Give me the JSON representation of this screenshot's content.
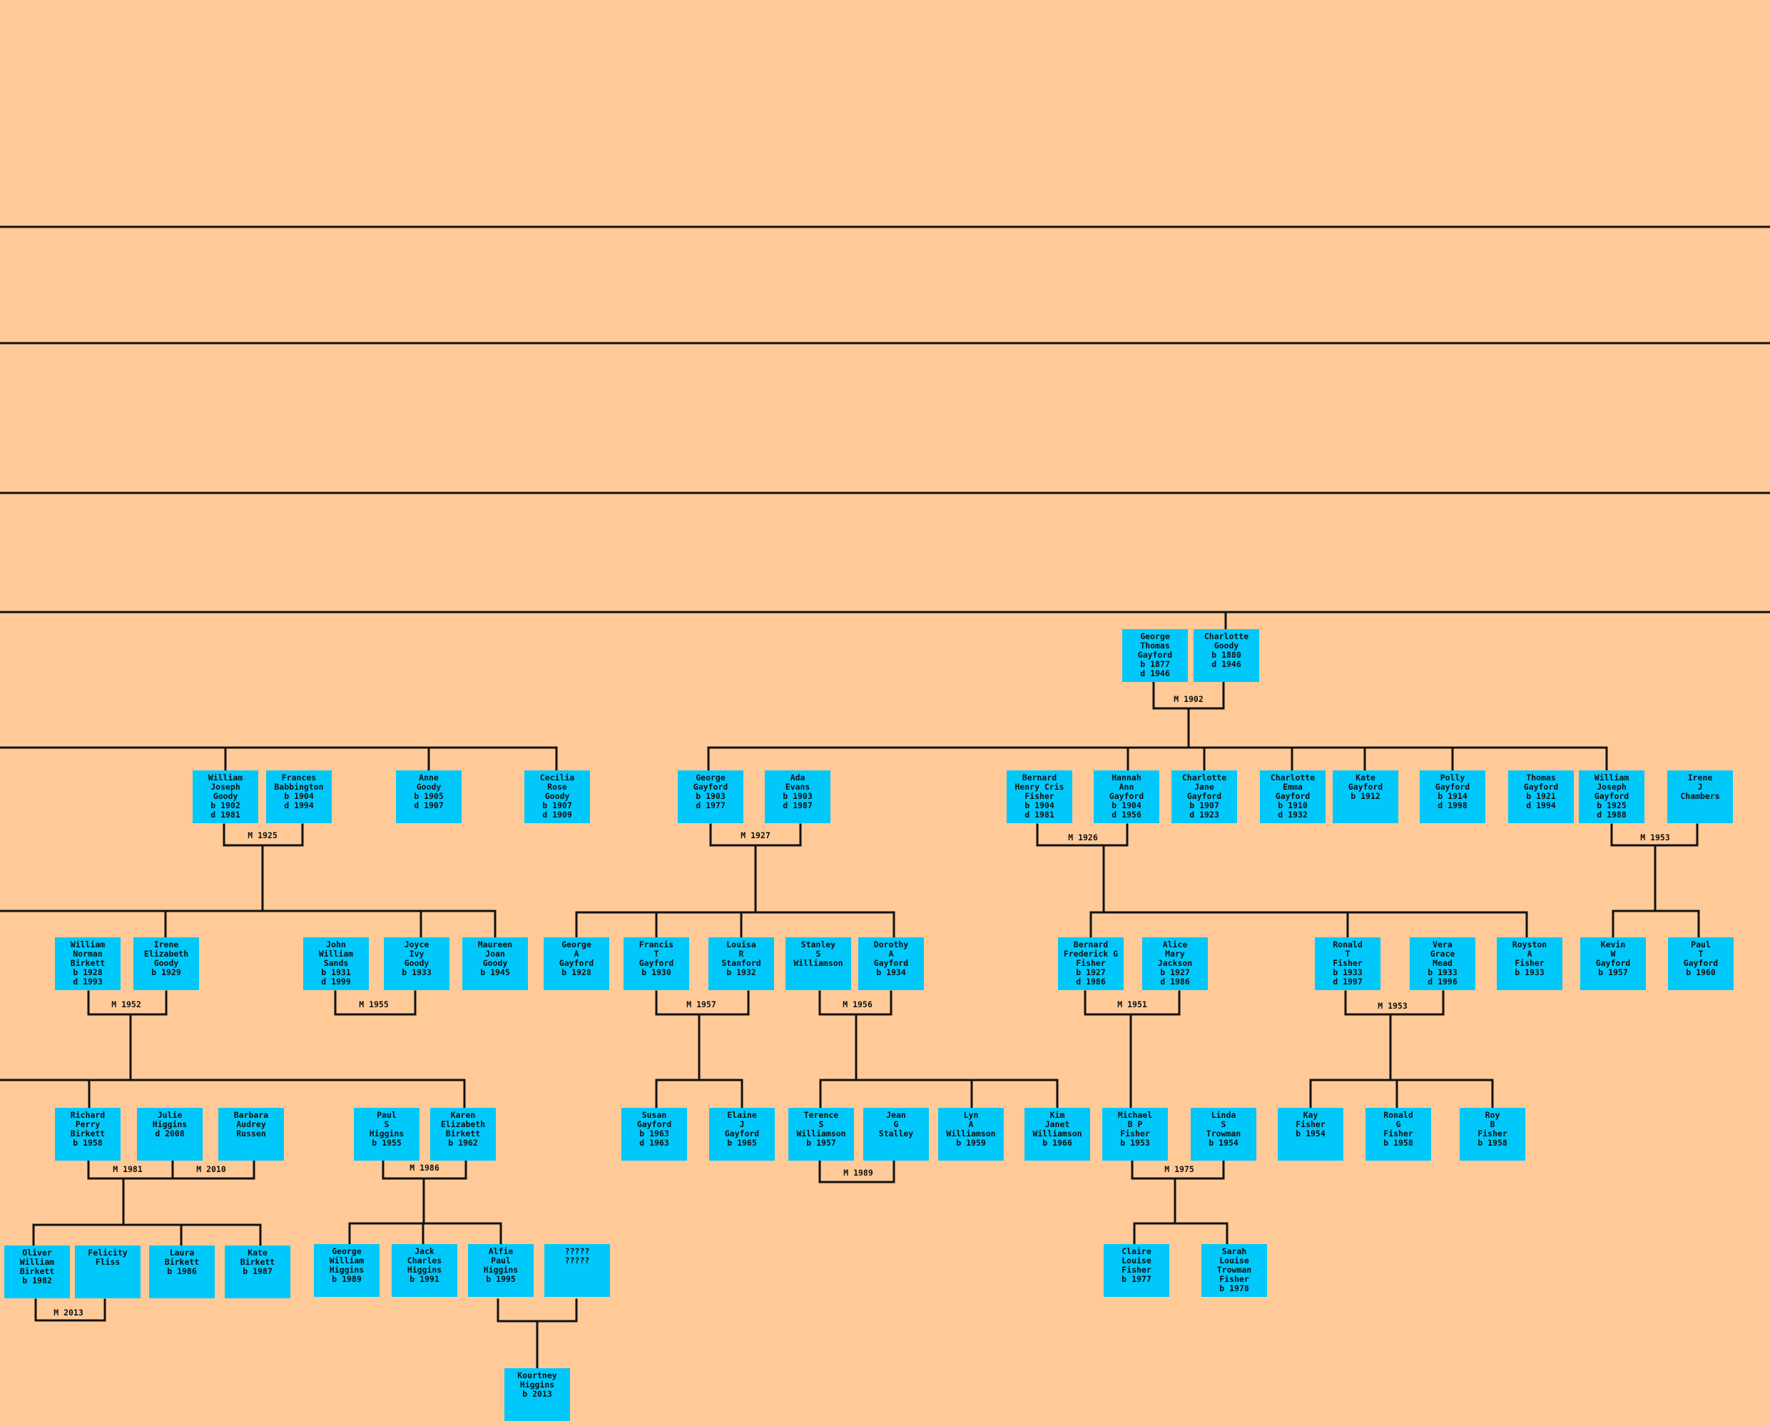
{
  "people": {
    "george_thomas": "George\nThomas\nGayford\nb 1877\nd 1946",
    "charlotte_goody": "Charlotte\nGoody\nb 1880\nd 1946",
    "william_joseph_goody": "William\nJoseph\nGoody\nb 1902\nd 1981",
    "frances_babbington": "Frances\nBabbington\nb 1904\nd 1994",
    "anne_goody": "Anne\nGoody\nb 1905\nd 1907",
    "cecilia_rose_goody": "Cecilia\nRose\nGoody\nb 1907\nd 1909",
    "george_gayford_1903": "George\nGayford\nb 1903\nd 1977",
    "ada_evans": "Ada\nEvans\nb 1903\nd 1987",
    "bernard_henry_cris_fisher": "Bernard\nHenry Cris\nFisher\nb 1904\nd 1981",
    "hannah_ann_gayford": "Hannah\nAnn\nGayford\nb 1904\nd 1956",
    "charlotte_jane_gayford": "Charlotte\nJane\nGayford\nb 1907\nd 1923",
    "charlotte_emma_gayford": "Charlotte\nEmma\nGayford\nb 1910\nd 1932",
    "kate_gayford": "Kate\nGayford\nb 1912",
    "polly_gayford": "Polly\nGayford\nb 1914\nd 1998",
    "thomas_gayford": "Thomas\nGayford\nb 1921\nd 1994",
    "william_joseph_gayford": "William\nJoseph\nGayford\nb 1925\nd 1988",
    "irene_j_chambers": "Irene\nJ\nChambers",
    "william_norman_birkett": "William\nNorman\nBirkett\nb 1928\nd 1993",
    "irene_elizabeth_goody": "Irene\nElizabeth\nGoody\nb 1929",
    "john_william_sands": "John\nWilliam\nSands\nb 1931\nd 1999",
    "joyce_ivy_goody": "Joyce\nIvy\nGoody\nb 1933",
    "maureen_joan_goody": "Maureen\nJoan\nGoody\nb 1945",
    "george_a_gayford": "George\nA\nGayford\nb 1928",
    "francis_t_gayford": "Francis\nT\nGayford\nb 1930",
    "louisa_r_stanford": "Louisa\nR\nStanford\nb 1932",
    "stanley_s_williamson": "Stanley\nS\nWilliamson",
    "dorothy_a_gayford": "Dorothy\nA\nGayford\nb 1934",
    "bernard_frederick_g_fisher": "Bernard\nFrederick G\nFisher\nb 1927\nd 1986",
    "alice_mary_jackson": "Alice\nMary\nJackson\nb 1927\nd 1986",
    "ronald_t_fisher": "Ronald\nT\nFisher\nb 1933\nd 1997",
    "vera_grace_mead": "Vera\nGrace\nMead\nb 1933\nd 1996",
    "royston_a_fisher": "Royston\nA\nFisher\nb 1933",
    "kevin_w_gayford": "Kevin\nW\nGayford\nb 1957",
    "paul_t_gayford": "Paul\nT\nGayford\nb 1960",
    "richard_perry_birkett": "Richard\nPerry\nBirkett\nb 1958",
    "julie_higgins": "Julie\nHiggins\nd 2008",
    "barbara_audrey_russen": "Barbara\nAudrey\nRussen",
    "paul_s_higgins": "Paul\nS\nHiggins\nb 1955",
    "karen_elizabeth_birkett": "Karen\nElizabeth\nBirkett\nb 1962",
    "susan_gayford": "Susan\nGayford\nb 1963\nd 1963",
    "elaine_j_gayford": "Elaine\nJ\nGayford\nb 1965",
    "terence_s_williamson": "Terence\nS\nWilliamson\nb 1957",
    "jean_g_stalley": "Jean\nG\nStalley",
    "lyn_a_williamson": "Lyn\nA\nWilliamson\nb 1959",
    "kim_janet_williamson": "Kim\nJanet\nWilliamson\nb 1966",
    "michael_b_p_fisher": "Michael\nB P\nFisher\nb 1953",
    "linda_s_trowman": "Linda\nS\nTrowman\nb 1954",
    "kay_fisher": "Kay\nFisher\nb 1954",
    "ronald_g_fisher": "Ronald\nG\nFisher\nb 1958",
    "roy_b_fisher": "Roy\nB\nFisher\nb 1958",
    "oliver_william_birkett": "Oliver\nWilliam\nBirkett\nb 1982",
    "felicity_fliss": "Felicity\nFliss",
    "laura_birkett": "Laura\nBirkett\nb 1986",
    "kate_birkett": "Kate\nBirkett\nb 1987",
    "george_william_higgins": "George\nWilliam\nHiggins\nb 1989",
    "jack_charles_higgins": "Jack\nCharles\nHiggins\nb 1991",
    "alfie_paul_higgins": "Alfie\nPaul\nHiggins\nb 1995",
    "unknown_partner": "?????\n?????",
    "claire_louise_fisher": "Claire\nLouise\nFisher\nb 1977",
    "sarah_louise_trowman_fisher": "Sarah\nLouise\nTrowman\nFisher\nb 1978",
    "kourtney_higgins": "Kourtney\nHiggins\nb 2013"
  },
  "marriages": {
    "m_george_charlotte": "M 1902",
    "m_william_frances": "M 1925",
    "m_george_ada": "M 1927",
    "m_bernard_hannah": "M 1926",
    "m_william_irene": "M 1953",
    "m_william_norman_irene": "M 1952",
    "m_john_joyce": "M 1955",
    "m_francis_louisa": "M 1957",
    "m_stanley_dorothy": "M 1956",
    "m_bernard_alice": "M 1951",
    "m_ronald_vera": "M 1953",
    "m_richard_julie": "M 1981",
    "m_richard_barbara": "M 2010",
    "m_paul_karen": "M 1986",
    "m_terence_jean": "M 1989",
    "m_michael_linda": "M 1975",
    "m_oliver_felicity": "M 2013"
  },
  "colors": {
    "background": "#ffca97",
    "box": "#00c8fb",
    "line": "#111111"
  }
}
